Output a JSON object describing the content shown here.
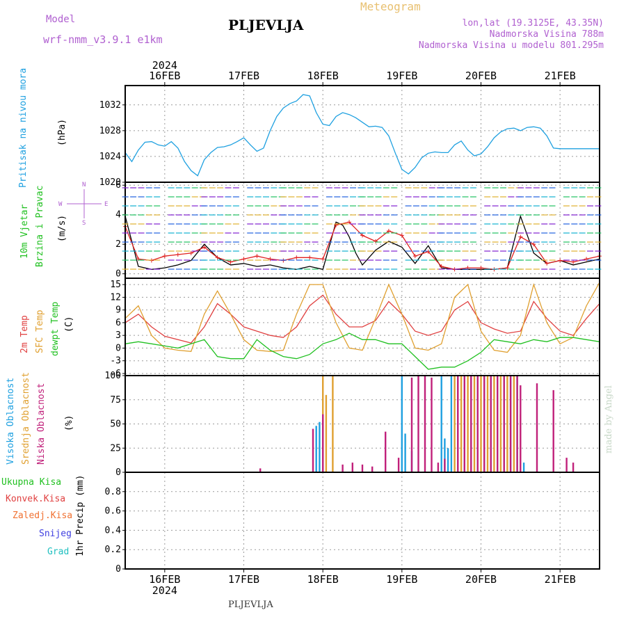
{
  "header": {
    "model_label": "Model",
    "model_name": "wrf-nmm_v3.9.1 e1km",
    "station": "PLJEVLJA",
    "meteogram_label": "Meteogram",
    "coords": "lon,lat (19.3125E, 43.35N)",
    "elevation": "Nadmorska Visina 788m",
    "model_elevation": "Nadmorska Visina u modelu 801.295m",
    "footer_station": "PLJEVLJA",
    "credit": "made by Angel",
    "colors": {
      "model": "#b060d0",
      "title": "#000000",
      "meteogram": "#e8c070",
      "coords": "#b060d0"
    }
  },
  "time_axis": {
    "year": "2024",
    "days": [
      "16FEB",
      "17FEB",
      "18FEB",
      "19FEB",
      "20FEB",
      "21FEB"
    ],
    "start_hour": 0,
    "end_hour": 144,
    "day_positions_hours": [
      12,
      36,
      60,
      84,
      108,
      132
    ]
  },
  "chart_data": [
    {
      "type": "line",
      "panel": "pressure",
      "ylabel_left": "Pritisak na nivou mora",
      "ylabel_unit": "(hPa)",
      "ylim": [
        1020,
        1035
      ],
      "yticks": [
        1020,
        1024,
        1028,
        1032
      ],
      "grid": true,
      "series": [
        {
          "color": "#1ea0e0",
          "x": [
            0,
            2,
            4,
            6,
            8,
            10,
            12,
            14,
            16,
            18,
            20,
            22,
            24,
            26,
            28,
            30,
            32,
            34,
            36,
            38,
            40,
            42,
            44,
            46,
            48,
            50,
            52,
            54,
            56,
            58,
            60,
            62,
            64,
            66,
            68,
            70,
            72,
            74,
            76,
            78,
            80,
            82,
            84,
            86,
            88,
            90,
            92,
            94,
            96,
            98,
            100,
            102,
            104,
            106,
            108,
            110,
            112,
            114,
            116,
            118,
            120,
            122,
            124,
            126,
            128,
            130,
            132,
            134,
            136,
            138,
            140,
            142,
            144
          ],
          "values": [
            1024.6,
            1023.2,
            1025,
            1026.2,
            1026.3,
            1025.8,
            1025.6,
            1026.3,
            1025.3,
            1023.2,
            1021.8,
            1021,
            1023.5,
            1024.6,
            1025.4,
            1025.5,
            1025.8,
            1026.3,
            1026.9,
            1025.8,
            1024.8,
            1025.3,
            1028,
            1030.2,
            1031.5,
            1032.2,
            1032.6,
            1033.6,
            1033.4,
            1030.8,
            1029,
            1028.8,
            1030.2,
            1030.8,
            1030.5,
            1030,
            1029.3,
            1028.6,
            1028.7,
            1028.5,
            1027.2,
            1024.5,
            1022,
            1021.3,
            1022.3,
            1023.8,
            1024.5,
            1024.7,
            1024.6,
            1024.6,
            1025.8,
            1026.4,
            1025,
            1024.1,
            1024.4,
            1025.5,
            1026.9,
            1027.8,
            1028.3,
            1028.4,
            1028,
            1028.5,
            1028.6,
            1028.4,
            1027.2,
            1025.3,
            1025.2,
            1025.2,
            1025.2,
            1025.2,
            1025.2,
            1025.2,
            1025.2
          ]
        }
      ]
    },
    {
      "type": "line",
      "panel": "wind",
      "ylabel_left": [
        "10m Vjetar",
        "Brzina i Pravac"
      ],
      "ylabel_unit": "(m/s)",
      "compass": {
        "n": "N",
        "s": "S",
        "e": "E",
        "w": "W"
      },
      "ylim": [
        -0.3,
        6.2
      ],
      "yticks": [
        0,
        2,
        4,
        6
      ],
      "grid": true,
      "series": [
        {
          "name": "brzina",
          "color": "#000000",
          "x": [
            0,
            4,
            8,
            12,
            16,
            20,
            24,
            28,
            32,
            36,
            40,
            44,
            48,
            52,
            56,
            60,
            64,
            66,
            68,
            70,
            72,
            76,
            80,
            84,
            88,
            92,
            96,
            100,
            104,
            108,
            112,
            116,
            120,
            124,
            128,
            132,
            136,
            140,
            144
          ],
          "values": [
            3.9,
            0.5,
            0.3,
            0.4,
            0.6,
            0.9,
            2.0,
            1.1,
            0.6,
            0.7,
            0.5,
            0.6,
            0.4,
            0.3,
            0.5,
            0.3,
            3.5,
            3.3,
            2.5,
            1.4,
            0.6,
            1.6,
            2.2,
            1.8,
            0.7,
            1.9,
            0.4,
            0.3,
            0.3,
            0.3,
            0.3,
            0.4,
            3.9,
            1.4,
            0.7,
            0.9,
            0.6,
            0.8,
            1.0
          ]
        },
        {
          "name": "brzina_udari",
          "color": "#e02020",
          "x": [
            0,
            4,
            8,
            12,
            16,
            20,
            24,
            28,
            32,
            36,
            40,
            44,
            48,
            52,
            56,
            60,
            64,
            68,
            72,
            76,
            80,
            84,
            88,
            92,
            96,
            100,
            104,
            108,
            112,
            116,
            120,
            124,
            128,
            132,
            136,
            140,
            144
          ],
          "values": [
            3.2,
            1.0,
            0.9,
            1.2,
            1.3,
            1.4,
            1.8,
            1.1,
            0.8,
            1.0,
            1.2,
            1.0,
            0.9,
            1.1,
            1.1,
            1.0,
            3.3,
            3.5,
            2.6,
            2.2,
            2.9,
            2.6,
            1.2,
            1.5,
            0.5,
            0.3,
            0.4,
            0.4,
            0.3,
            0.4,
            2.5,
            2.0,
            0.7,
            0.9,
            0.8,
            1.0,
            1.2
          ]
        }
      ]
    },
    {
      "type": "line",
      "panel": "temperature",
      "ylabels_left": [
        "2m Temp",
        "SFC Temp",
        "dewpt Temp"
      ],
      "ylabel_unit": "(C)",
      "ylim": [
        -6.5,
        16.5
      ],
      "yticks": [
        -6,
        -3,
        0,
        3,
        6,
        9,
        12,
        15
      ],
      "grid": true,
      "series": [
        {
          "name": "2m Temp",
          "color": "#e04040",
          "x": [
            0,
            4,
            8,
            12,
            16,
            20,
            24,
            28,
            32,
            36,
            40,
            44,
            48,
            52,
            56,
            60,
            64,
            68,
            72,
            76,
            80,
            84,
            88,
            92,
            96,
            100,
            104,
            108,
            112,
            116,
            120,
            124,
            128,
            132,
            136,
            140,
            144
          ],
          "values": [
            6,
            8,
            5,
            2.8,
            2,
            1.2,
            5,
            10.5,
            8,
            5,
            4,
            3,
            2.5,
            5,
            10,
            12.5,
            8,
            5,
            5,
            6.5,
            11,
            8,
            4,
            3,
            4,
            9,
            11,
            6,
            4.5,
            3.5,
            4,
            11,
            7,
            4,
            3,
            7,
            10.5
          ]
        },
        {
          "name": "SFC Temp",
          "color": "#e0a030",
          "x": [
            0,
            4,
            8,
            12,
            16,
            20,
            24,
            28,
            32,
            36,
            40,
            44,
            48,
            52,
            56,
            60,
            64,
            68,
            72,
            76,
            80,
            84,
            88,
            92,
            96,
            100,
            104,
            108,
            112,
            116,
            120,
            124,
            128,
            132,
            136,
            140,
            144
          ],
          "values": [
            7,
            10,
            3,
            0,
            -0.5,
            -0.8,
            8,
            13.5,
            8,
            2,
            -0.5,
            -0.8,
            -0.5,
            8,
            15,
            15,
            6,
            0,
            -0.5,
            7,
            15,
            8,
            0,
            -0.5,
            1,
            12,
            15,
            4,
            -0.5,
            -1,
            3,
            15,
            6,
            1,
            2.5,
            10,
            15.5
          ]
        },
        {
          "name": "dewpt Temp",
          "color": "#20c020",
          "x": [
            0,
            4,
            8,
            12,
            16,
            20,
            24,
            28,
            32,
            36,
            40,
            44,
            48,
            52,
            56,
            60,
            64,
            68,
            72,
            76,
            80,
            84,
            88,
            92,
            96,
            100,
            104,
            108,
            112,
            116,
            120,
            124,
            128,
            132,
            136,
            140,
            144
          ],
          "values": [
            1,
            1.5,
            1,
            0.5,
            0,
            1,
            2,
            -2,
            -2.5,
            -2.5,
            2,
            -0.5,
            -2,
            -2.5,
            -1.5,
            1,
            2,
            3.5,
            2,
            2,
            1,
            1,
            -2,
            -5,
            -4.5,
            -4.5,
            -3,
            -1,
            2,
            1.5,
            1,
            2,
            1.5,
            2.5,
            2.5,
            2,
            1.5
          ]
        }
      ]
    },
    {
      "type": "bar",
      "panel": "clouds",
      "ylabels_left": [
        "Visoka Oblacnost",
        "Srednja Oblacnost",
        "Niska Oblacnost"
      ],
      "ylabel_unit": "(%)",
      "ylim": [
        0,
        100
      ],
      "yticks": [
        0,
        25,
        50,
        75,
        100
      ],
      "grid": true,
      "series": [
        {
          "name": "Visoka Oblacnost",
          "color": "#1ea0e0",
          "bars": [
            [
              58,
              48
            ],
            [
              59,
              52
            ],
            [
              84,
              100
            ],
            [
              85,
              40
            ],
            [
              87,
              22
            ],
            [
              96,
              100
            ],
            [
              97,
              35
            ],
            [
              98,
              25
            ],
            [
              99,
              100
            ],
            [
              101,
              100
            ],
            [
              103,
              100
            ],
            [
              105,
              100
            ],
            [
              107,
              100
            ],
            [
              109,
              100
            ],
            [
              111,
              100
            ],
            [
              113,
              100
            ],
            [
              115,
              100
            ],
            [
              117,
              100
            ],
            [
              119,
              100
            ],
            [
              121,
              10
            ]
          ]
        },
        {
          "name": "Srednja Oblacnost",
          "color": "#e0a030",
          "bars": [
            [
              60,
              100
            ],
            [
              61,
              80
            ],
            [
              63,
              100
            ],
            [
              100,
              100
            ],
            [
              102,
              100
            ],
            [
              104,
              100
            ],
            [
              106,
              100
            ],
            [
              108,
              100
            ],
            [
              110,
              100
            ],
            [
              112,
              100
            ],
            [
              114,
              100
            ],
            [
              116,
              100
            ],
            [
              118,
              100
            ],
            [
              120,
              60
            ]
          ]
        },
        {
          "name": "Niska Oblacnost",
          "color": "#c0207a",
          "bars": [
            [
              41,
              4
            ],
            [
              57,
              45
            ],
            [
              60,
              60
            ],
            [
              66,
              8
            ],
            [
              69,
              10
            ],
            [
              72,
              8
            ],
            [
              75,
              6
            ],
            [
              79,
              42
            ],
            [
              83,
              15
            ],
            [
              87,
              98
            ],
            [
              89,
              100
            ],
            [
              91,
              100
            ],
            [
              93,
              98
            ],
            [
              95,
              10
            ],
            [
              97,
              14
            ],
            [
              101,
              100
            ],
            [
              103,
              100
            ],
            [
              105,
              100
            ],
            [
              107,
              100
            ],
            [
              109,
              100
            ],
            [
              111,
              100
            ],
            [
              113,
              100
            ],
            [
              115,
              100
            ],
            [
              117,
              100
            ],
            [
              119,
              100
            ],
            [
              120,
              90
            ],
            [
              125,
              92
            ],
            [
              130,
              85
            ],
            [
              134,
              15
            ],
            [
              136,
              10
            ]
          ]
        }
      ]
    },
    {
      "type": "line",
      "panel": "precipitation",
      "ylabels_left": [
        "Ukupna Kisa",
        "Konvek.Kisa",
        "Zaledj.Kisa",
        "Snijeg",
        "Grad"
      ],
      "ylabel_unit": "1hr Precip (mm)",
      "ylim": [
        0,
        1.0
      ],
      "yticks": [
        0,
        0.2,
        0.4,
        0.6,
        0.8
      ],
      "grid": true,
      "legend_colors": [
        "#20c020",
        "#e04040",
        "#f07030",
        "#4040e0",
        "#20c0c0"
      ],
      "series": []
    }
  ]
}
